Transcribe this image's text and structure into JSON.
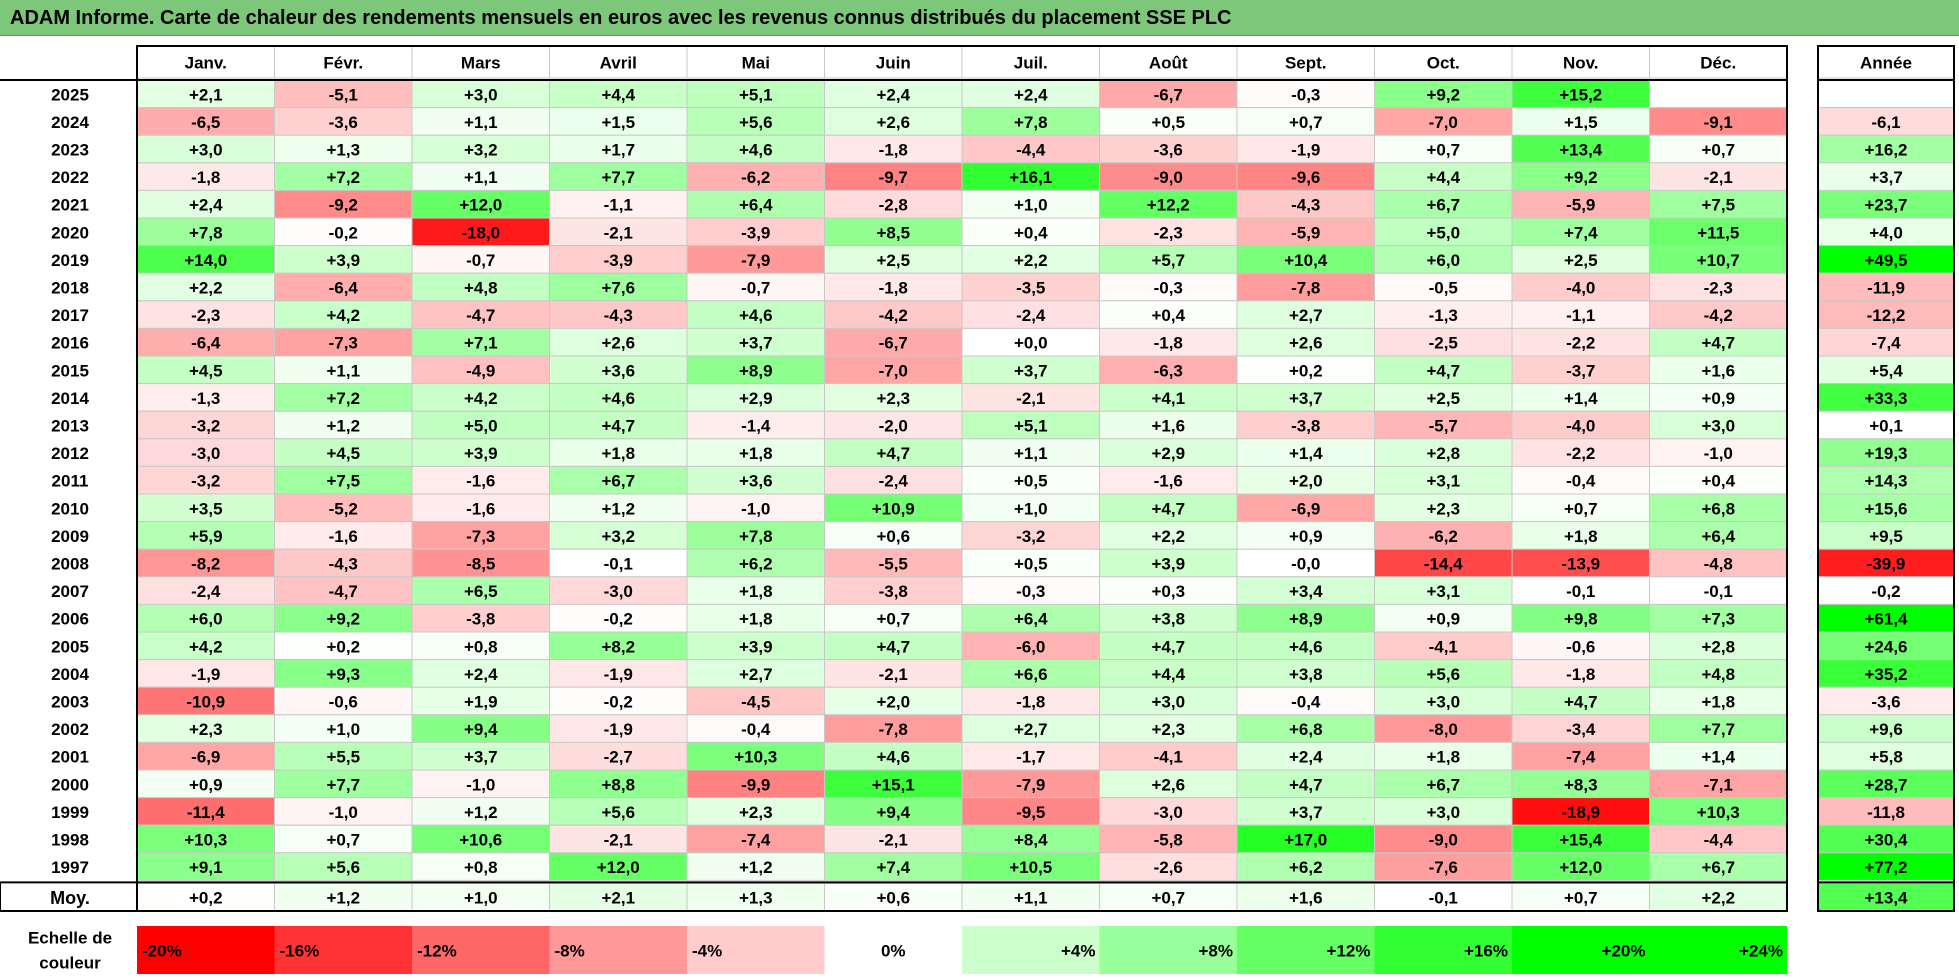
{
  "title": "ADAM Informe. Carte de chaleur des rendements mensuels en euros avec les revenus connus distribués du placement SSE PLC",
  "chart_data": {
    "type": "heatmap",
    "title": "ADAM Informe. Carte de chaleur des rendements mensuels en euros avec les revenus connus distribués du placement SSE PLC",
    "months": [
      "Janv.",
      "Févr.",
      "Mars",
      "Avril",
      "Mai",
      "Juin",
      "Juil.",
      "Août",
      "Sept.",
      "Oct.",
      "Nov.",
      "Déc."
    ],
    "year_header": "Année",
    "years": [
      "2025",
      "2024",
      "2023",
      "2022",
      "2021",
      "2020",
      "2019",
      "2018",
      "2017",
      "2016",
      "2015",
      "2014",
      "2013",
      "2012",
      "2011",
      "2010",
      "2009",
      "2008",
      "2007",
      "2006",
      "2005",
      "2004",
      "2003",
      "2002",
      "2001",
      "2000",
      "1999",
      "1998",
      "1997"
    ],
    "values": [
      [
        "+2,1",
        "-5,1",
        "+3,0",
        "+4,4",
        "+5,1",
        "+2,4",
        "+2,4",
        "-6,7",
        "-0,3",
        "+9,2",
        "+15,2",
        ""
      ],
      [
        "-6,5",
        "-3,6",
        "+1,1",
        "+1,5",
        "+5,6",
        "+2,6",
        "+7,8",
        "+0,5",
        "+0,7",
        "-7,0",
        "+1,5",
        "-9,1"
      ],
      [
        "+3,0",
        "+1,3",
        "+3,2",
        "+1,7",
        "+4,6",
        "-1,8",
        "-4,4",
        "-3,6",
        "-1,9",
        "+0,7",
        "+13,4",
        "+0,7"
      ],
      [
        "-1,8",
        "+7,2",
        "+1,1",
        "+7,7",
        "-6,2",
        "-9,7",
        "+16,1",
        "-9,0",
        "-9,6",
        "+4,4",
        "+9,2",
        "-2,1"
      ],
      [
        "+2,4",
        "-9,2",
        "+12,0",
        "-1,1",
        "+6,4",
        "-2,8",
        "+1,0",
        "+12,2",
        "-4,3",
        "+6,7",
        "-5,9",
        "+7,5"
      ],
      [
        "+7,8",
        "-0,2",
        "-18,0",
        "-2,1",
        "-3,9",
        "+8,5",
        "+0,4",
        "-2,3",
        "-5,9",
        "+5,0",
        "+7,4",
        "+11,5"
      ],
      [
        "+14,0",
        "+3,9",
        "-0,7",
        "-3,9",
        "-7,9",
        "+2,5",
        "+2,2",
        "+5,7",
        "+10,4",
        "+6,0",
        "+2,5",
        "+10,7"
      ],
      [
        "+2,2",
        "-6,4",
        "+4,8",
        "+7,6",
        "-0,7",
        "-1,8",
        "-3,5",
        "-0,3",
        "-7,8",
        "-0,5",
        "-4,0",
        "-2,3"
      ],
      [
        "-2,3",
        "+4,2",
        "-4,7",
        "-4,3",
        "+4,6",
        "-4,2",
        "-2,4",
        "+0,4",
        "+2,7",
        "-1,3",
        "-1,1",
        "-4,2"
      ],
      [
        "-6,4",
        "-7,3",
        "+7,1",
        "+2,6",
        "+3,7",
        "-6,7",
        "+0,0",
        "-1,8",
        "+2,6",
        "-2,5",
        "-2,2",
        "+4,7"
      ],
      [
        "+4,5",
        "+1,1",
        "-4,9",
        "+3,6",
        "+8,9",
        "-7,0",
        "+3,7",
        "-6,3",
        "+0,2",
        "+4,7",
        "-3,7",
        "+1,6"
      ],
      [
        "-1,3",
        "+7,2",
        "+4,2",
        "+4,6",
        "+2,9",
        "+2,3",
        "-2,1",
        "+4,1",
        "+3,7",
        "+2,5",
        "+1,4",
        "+0,9"
      ],
      [
        "-3,2",
        "+1,2",
        "+5,0",
        "+4,7",
        "-1,4",
        "-2,0",
        "+5,1",
        "+1,6",
        "-3,8",
        "-5,7",
        "-4,0",
        "+3,0"
      ],
      [
        "-3,0",
        "+4,5",
        "+3,9",
        "+1,8",
        "+1,8",
        "+4,7",
        "+1,1",
        "+2,9",
        "+1,4",
        "+2,8",
        "-2,2",
        "-1,0"
      ],
      [
        "-3,2",
        "+7,5",
        "-1,6",
        "+6,7",
        "+3,6",
        "-2,4",
        "+0,5",
        "-1,6",
        "+2,0",
        "+3,1",
        "-0,4",
        "+0,4"
      ],
      [
        "+3,5",
        "-5,2",
        "-1,6",
        "+1,2",
        "-1,0",
        "+10,9",
        "+1,0",
        "+4,7",
        "-6,9",
        "+2,3",
        "+0,7",
        "+6,8"
      ],
      [
        "+5,9",
        "-1,6",
        "-7,3",
        "+3,2",
        "+7,8",
        "+0,6",
        "-3,2",
        "+2,2",
        "+0,9",
        "-6,2",
        "+1,8",
        "+6,4"
      ],
      [
        "-8,2",
        "-4,3",
        "-8,5",
        "-0,1",
        "+6,2",
        "-5,5",
        "+0,5",
        "+3,9",
        "-0,0",
        "-14,4",
        "-13,9",
        "-4,8"
      ],
      [
        "-2,4",
        "-4,7",
        "+6,5",
        "-3,0",
        "+1,8",
        "-3,8",
        "-0,3",
        "+0,3",
        "+3,4",
        "+3,1",
        "-0,1",
        "-0,1"
      ],
      [
        "+6,0",
        "+9,2",
        "-3,8",
        "-0,2",
        "+1,8",
        "+0,7",
        "+6,4",
        "+3,8",
        "+8,9",
        "+0,9",
        "+9,8",
        "+7,3"
      ],
      [
        "+4,2",
        "+0,2",
        "+0,8",
        "+8,2",
        "+3,9",
        "+4,7",
        "-6,0",
        "+4,7",
        "+4,6",
        "-4,1",
        "-0,6",
        "+2,8"
      ],
      [
        "-1,9",
        "+9,3",
        "+2,4",
        "-1,9",
        "+2,7",
        "-2,1",
        "+6,6",
        "+4,4",
        "+3,8",
        "+5,6",
        "-1,8",
        "+4,8"
      ],
      [
        "-10,9",
        "-0,6",
        "+1,9",
        "-0,2",
        "-4,5",
        "+2,0",
        "-1,8",
        "+3,0",
        "-0,4",
        "+3,0",
        "+4,7",
        "+1,8"
      ],
      [
        "+2,3",
        "+1,0",
        "+9,4",
        "-1,9",
        "-0,4",
        "-7,8",
        "+2,7",
        "+2,3",
        "+6,8",
        "-8,0",
        "-3,4",
        "+7,7"
      ],
      [
        "-6,9",
        "+5,5",
        "+3,7",
        "-2,7",
        "+10,3",
        "+4,6",
        "-1,7",
        "-4,1",
        "+2,4",
        "+1,8",
        "-7,4",
        "+1,4"
      ],
      [
        "+0,9",
        "+7,7",
        "-1,0",
        "+8,8",
        "-9,9",
        "+15,1",
        "-7,9",
        "+2,6",
        "+4,7",
        "+6,7",
        "+8,3",
        "-7,1"
      ],
      [
        "-11,4",
        "-1,0",
        "+1,2",
        "+5,6",
        "+2,3",
        "+9,4",
        "-9,5",
        "-3,0",
        "+3,7",
        "+3,0",
        "-18,9",
        "+10,3"
      ],
      [
        "+10,3",
        "+0,7",
        "+10,6",
        "-2,1",
        "-7,4",
        "-2,1",
        "+8,4",
        "-5,8",
        "+17,0",
        "-9,0",
        "+15,4",
        "-4,4"
      ],
      [
        "+9,1",
        "+5,6",
        "+0,8",
        "+12,0",
        "+1,2",
        "+7,4",
        "+10,5",
        "-2,6",
        "+6,2",
        "-7,6",
        "+12,0",
        "+6,7"
      ]
    ],
    "annual": [
      "",
      "-6,1",
      "+16,2",
      "+3,7",
      "+23,7",
      "+4,0",
      "+49,5",
      "-11,9",
      "-12,2",
      "-7,4",
      "+5,4",
      "+33,3",
      "+0,1",
      "+19,3",
      "+14,3",
      "+15,6",
      "+9,5",
      "-39,9",
      "-0,2",
      "+61,4",
      "+24,6",
      "+35,2",
      "-3,6",
      "+9,6",
      "+5,8",
      "+28,7",
      "-11,8",
      "+30,4",
      "+77,2"
    ],
    "average_label": "Moy.",
    "average": [
      "+0,2",
      "+1,2",
      "+1,0",
      "+2,1",
      "+1,3",
      "+0,6",
      "+1,1",
      "+0,7",
      "+1,6",
      "-0,1",
      "+0,7",
      "+2,2"
    ],
    "average_annual": "+13,4",
    "scale_label": "Echelle de couleur",
    "scale": [
      "-20%",
      "-16%",
      "-12%",
      "-8%",
      "-4%",
      "0%",
      "+4%",
      "+8%",
      "+12%",
      "+16%",
      "+20%",
      "+24%"
    ],
    "scale_values": [
      -20,
      -16,
      -12,
      -8,
      -4,
      0,
      4,
      8,
      12,
      16,
      20,
      24
    ],
    "colors": {
      "negative_max": "#ff0000",
      "neutral": "#ffffff",
      "positive_max": "#00ff00",
      "title_bg": "#7dc77a"
    }
  }
}
